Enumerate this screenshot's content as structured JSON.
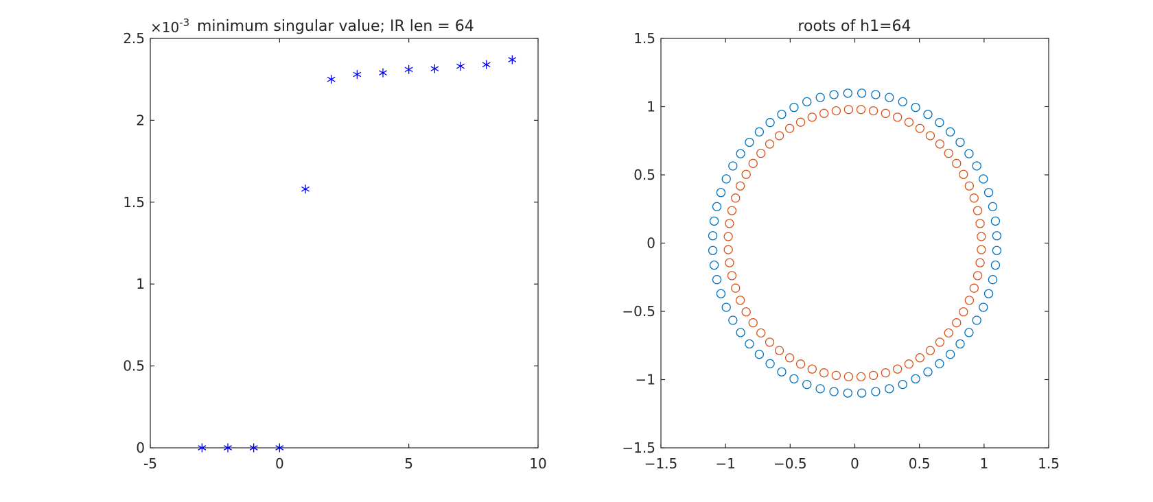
{
  "chart_data": [
    {
      "type": "scatter",
      "title": "minimum singular value; IR len = 64",
      "exponent_label": {
        "base": "×10",
        "power": "-3"
      },
      "xlabel": "",
      "ylabel": "",
      "xlim": [
        -5,
        10
      ],
      "ylim": [
        0,
        2.5
      ],
      "x_ticks": [
        "-5",
        "0",
        "5",
        "10"
      ],
      "y_ticks": [
        "0",
        "0.5",
        "1",
        "1.5",
        "2",
        "2.5"
      ],
      "grid": false,
      "marker": "asterisk",
      "series": [
        {
          "color": "#0000ff",
          "x": [
            -3,
            -2,
            -1,
            0,
            1,
            2,
            3,
            4,
            5,
            6,
            7,
            8,
            9
          ],
          "y": [
            0,
            0,
            0,
            0,
            1.58,
            2.25,
            2.28,
            2.29,
            2.31,
            2.315,
            2.33,
            2.34,
            2.37
          ]
        }
      ]
    },
    {
      "type": "scatter",
      "title": "roots of h1=64",
      "xlabel": "",
      "ylabel": "",
      "xlim": [
        -1.5,
        1.5
      ],
      "ylim": [
        -1.5,
        1.5
      ],
      "x_ticks": [
        "−1.5",
        "−1",
        "−0.5",
        "0",
        "0.5",
        "1",
        "1.5"
      ],
      "y_ticks": [
        "−1.5",
        "−1",
        "−0.5",
        "0",
        "0.5",
        "1",
        "1.5"
      ],
      "grid": false,
      "marker": "circle",
      "series": [
        {
          "color": "#0072bd",
          "radius": 1.1,
          "count": 64,
          "phase_offset_index": 0.5
        },
        {
          "color": "#d95319",
          "radius": 0.98,
          "count": 64,
          "phase_offset_index": 0.5
        }
      ]
    }
  ]
}
